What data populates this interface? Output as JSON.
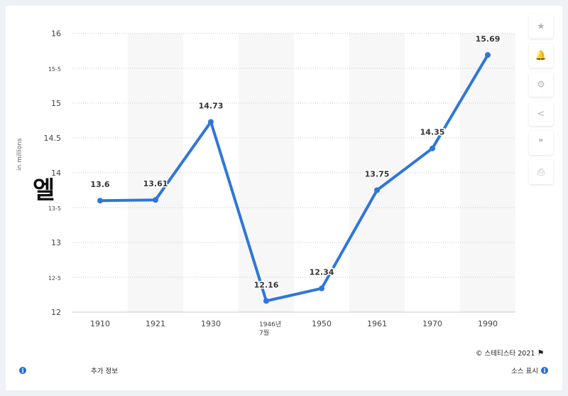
{
  "chart_data": {
    "type": "line",
    "categories": [
      "1910",
      "1921",
      "1930",
      "1946",
      "1950",
      "1961",
      "1970",
      "1990"
    ],
    "x_tick_labels": [
      "1910",
      "1921",
      "1930",
      "1946년\n7월",
      "1950",
      "1961",
      "1970",
      "1990"
    ],
    "values": [
      13.6,
      13.61,
      14.73,
      12.16,
      12.34,
      13.75,
      14.35,
      15.69
    ],
    "data_labels": [
      "13.6",
      "13.61",
      "14.73",
      "12.16",
      "12.34",
      "13.75",
      "14.35",
      "15.69"
    ],
    "y_ticks": [
      {
        "value": 12,
        "label": "12"
      },
      {
        "value": 12.5,
        "label": "12-5"
      },
      {
        "value": 13,
        "label": "13"
      },
      {
        "value": 13.5,
        "label": "13-5"
      },
      {
        "value": 14,
        "label": "14"
      },
      {
        "value": 14.5,
        "label": "14.5"
      },
      {
        "value": 15,
        "label": "15"
      },
      {
        "value": 15.5,
        "label": "15-5"
      },
      {
        "value": 16,
        "label": "16"
      }
    ],
    "ylim": [
      12,
      16
    ],
    "ylabel": "in millions",
    "ylabel_overlay": "엘",
    "grid": true,
    "line_color": "#2f76d8",
    "band_color": "#f7f7f7"
  },
  "toolbar": {
    "buttons": [
      {
        "name": "favorite-button",
        "icon": "star-icon",
        "glyph": "★"
      },
      {
        "name": "notification-button",
        "icon": "bell-icon",
        "glyph": "🔔"
      },
      {
        "name": "settings-button",
        "icon": "gear-icon",
        "glyph": "⚙"
      },
      {
        "name": "share-button",
        "icon": "share-icon",
        "glyph": "<"
      },
      {
        "name": "cite-button",
        "icon": "quote-icon",
        "glyph": "❞"
      },
      {
        "name": "print-button",
        "icon": "print-icon",
        "glyph": "⎙"
      }
    ]
  },
  "footer": {
    "copyright": "©  스테티스타 2021",
    "additional_info": "추가 정보",
    "show_source": "소스 표시"
  },
  "colors": {
    "accent": "#1f6fd6",
    "line": "#2f76d8"
  }
}
